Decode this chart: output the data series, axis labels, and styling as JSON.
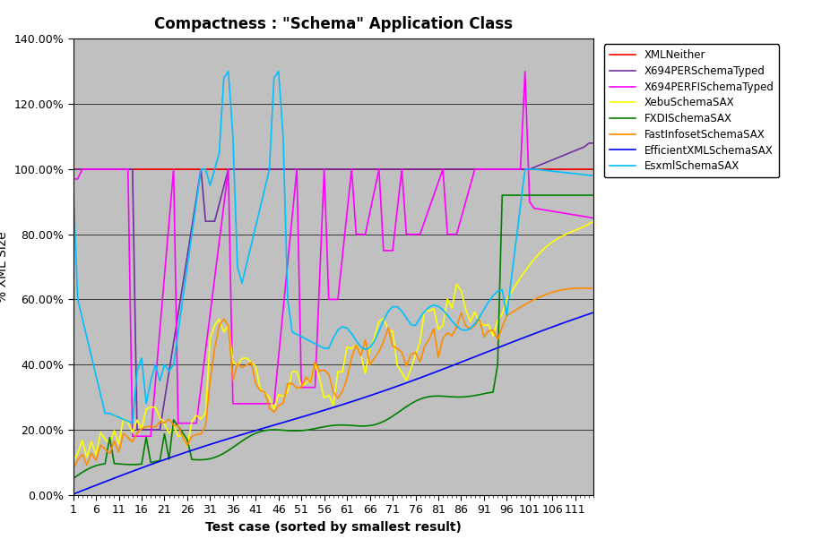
{
  "title": "Compactness : \"Schema\" Application Class",
  "xlabel": "Test case (sorted by smallest result)",
  "ylabel": "% XML Size",
  "n_points": 115,
  "ylim": [
    0.0,
    1.4
  ],
  "yticks": [
    0.0,
    0.2,
    0.4,
    0.6,
    0.8,
    1.0,
    1.2,
    1.4
  ],
  "xticks": [
    1,
    6,
    11,
    16,
    21,
    26,
    31,
    36,
    41,
    46,
    51,
    56,
    61,
    66,
    71,
    76,
    81,
    86,
    91,
    96,
    101,
    106,
    111
  ],
  "plot_bg": "#c0c0c0",
  "fig_bg": "#ffffff",
  "grid_color": "#000000",
  "series": [
    {
      "name": "XMLNeither",
      "color": "#ff0000"
    },
    {
      "name": "X694PERSchemaTyped",
      "color": "#7030a0"
    },
    {
      "name": "X694PERFISchemaTyped",
      "color": "#ff00ff"
    },
    {
      "name": "XebuSchemaSAX",
      "color": "#ffff00"
    },
    {
      "name": "FXDISchemaSAX",
      "color": "#008000"
    },
    {
      "name": "FastInfosetSchemaSAX",
      "color": "#ff8c00"
    },
    {
      "name": "EfficientXMLSchemaSAX",
      "color": "#0000ff"
    },
    {
      "name": "EsxmlSchemaSAX",
      "color": "#00bfff"
    }
  ],
  "lw": 1.2,
  "title_fontsize": 12,
  "axis_fontsize": 9,
  "legend_fontsize": 8.5
}
